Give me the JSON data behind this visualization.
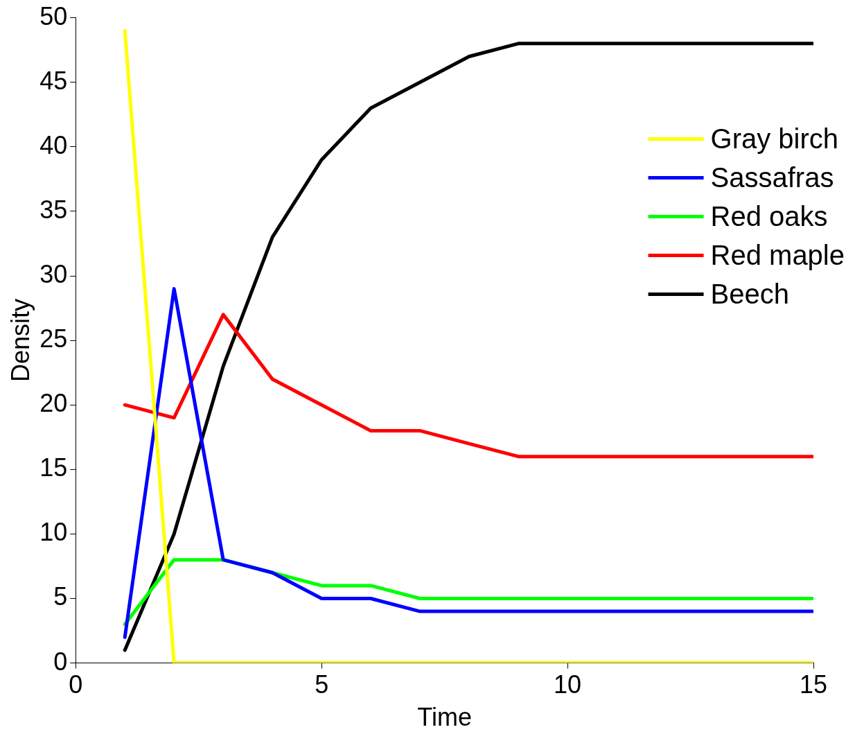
{
  "chart_data": {
    "type": "line",
    "xlabel": "Time",
    "ylabel": "Density",
    "x": [
      1,
      2,
      3,
      4,
      5,
      6,
      7,
      8,
      9,
      10,
      11,
      12,
      13,
      14,
      15
    ],
    "series": [
      {
        "name": "Gray birch",
        "color": "#ffff00",
        "values": [
          49,
          0,
          0,
          0,
          0,
          0,
          0,
          0,
          0,
          0,
          0,
          0,
          0,
          0,
          0
        ]
      },
      {
        "name": "Sassafras",
        "color": "#0000ff",
        "values": [
          2,
          29,
          8,
          7,
          5,
          5,
          4,
          4,
          4,
          4,
          4,
          4,
          4,
          4,
          4
        ]
      },
      {
        "name": "Red oaks",
        "color": "#00ff00",
        "values": [
          3,
          8,
          8,
          7,
          6,
          6,
          5,
          5,
          5,
          5,
          5,
          5,
          5,
          5,
          5
        ]
      },
      {
        "name": "Red maple",
        "color": "#ff0000",
        "values": [
          20,
          19,
          27,
          22,
          20,
          18,
          18,
          17,
          16,
          16,
          16,
          16,
          16,
          16,
          16
        ]
      },
      {
        "name": "Beech",
        "color": "#000000",
        "values": [
          1,
          10,
          23,
          33,
          39,
          43,
          45,
          47,
          48,
          48,
          48,
          48,
          48,
          48,
          48
        ]
      }
    ],
    "xlim": [
      0,
      15
    ],
    "xticks": [
      0,
      5,
      10,
      15
    ],
    "ylim": [
      0,
      50
    ],
    "yticks": [
      0,
      5,
      10,
      15,
      20,
      25,
      30,
      35,
      40,
      45,
      50
    ],
    "grid": false,
    "legend": "top right",
    "marker": "none",
    "line_style": "solid"
  }
}
